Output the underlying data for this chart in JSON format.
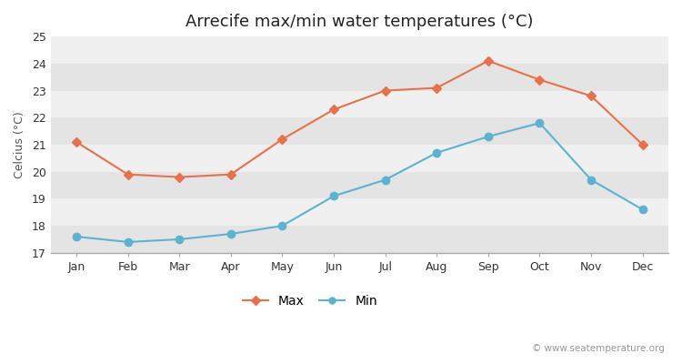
{
  "title": "Arrecife max/min water temperatures (°C)",
  "xlabel": "",
  "ylabel": "Celcius (°C)",
  "months": [
    "Jan",
    "Feb",
    "Mar",
    "Apr",
    "May",
    "Jun",
    "Jul",
    "Aug",
    "Sep",
    "Oct",
    "Nov",
    "Dec"
  ],
  "max_temps": [
    21.1,
    19.9,
    19.8,
    19.9,
    21.2,
    22.3,
    23.0,
    23.1,
    24.1,
    23.4,
    22.8,
    21.0
  ],
  "min_temps": [
    17.6,
    17.4,
    17.5,
    17.7,
    18.0,
    19.1,
    19.7,
    20.7,
    21.3,
    21.8,
    19.7,
    18.6
  ],
  "max_color": "#e8714a",
  "min_color": "#5ab4d1",
  "ylim": [
    17,
    25
  ],
  "yticks": [
    17,
    18,
    19,
    20,
    21,
    22,
    23,
    24,
    25
  ],
  "bg_color": "#ffffff",
  "plot_bg_color": "#f0f0f0",
  "band_light": "#f0f0f0",
  "band_dark": "#e4e4e4",
  "grid_color": "#ffffff",
  "watermark": "© www.seatemperature.org",
  "title_fontsize": 13,
  "label_fontsize": 9,
  "tick_fontsize": 9,
  "legend_fontsize": 10
}
